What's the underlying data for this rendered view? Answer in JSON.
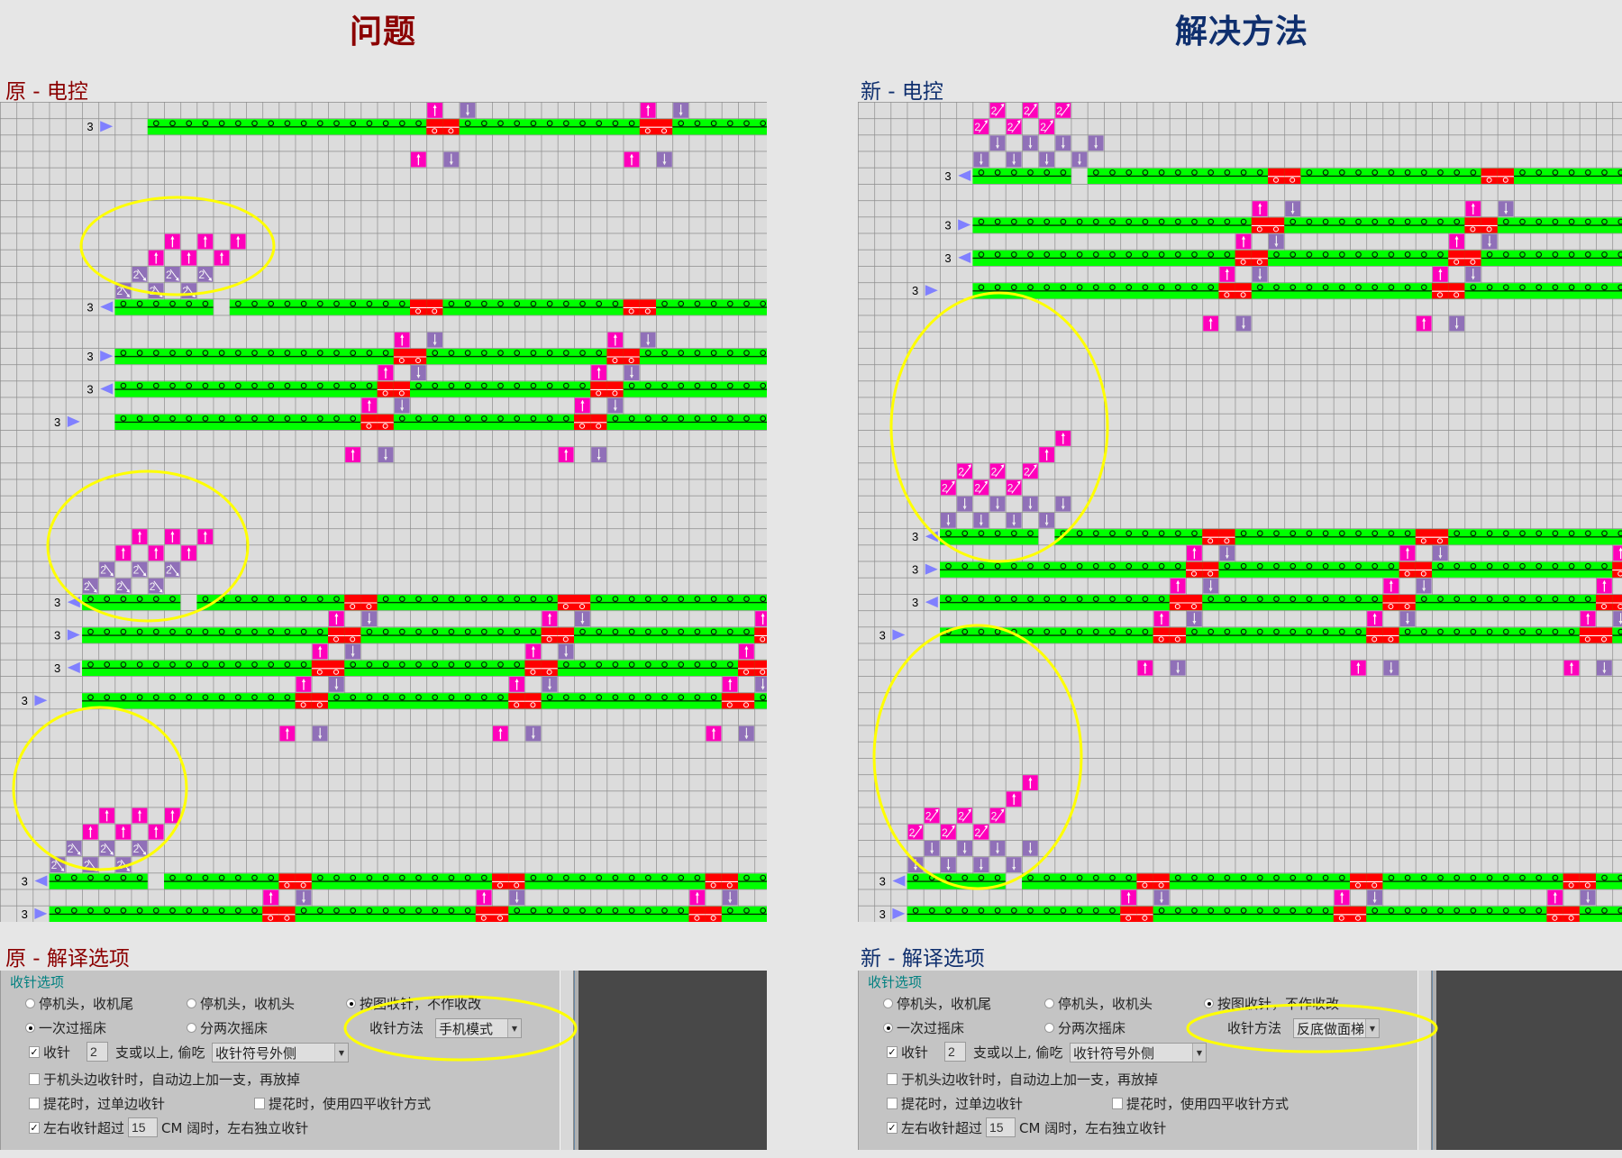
{
  "headings": {
    "problem": "问题",
    "solution": "解决方法"
  },
  "sections": {
    "orig_ctrl": "原 - 电控",
    "new_ctrl": "新 - 电控",
    "orig_opts": "原 - 解译选项",
    "new_opts": "新 - 解译选项"
  },
  "colors": {
    "grid_bg": "#dcdcdc",
    "grid_line": "#8c8c8c",
    "course": "#00ff00",
    "transfer": "#ff0000",
    "up": "#ff00bb",
    "down": "#9070b8",
    "direction_arrow": "#8080ff",
    "highlight": "#ffff00",
    "problem_title": "#8b0000",
    "solution_title": "#0f2f6e"
  },
  "grids": [
    {
      "name": "original",
      "courses": [
        {
          "row": 1,
          "label": "3",
          "dir": "right",
          "label_col": 5,
          "arrow_col": 6,
          "start": 9,
          "gap": null,
          "reds": [
            26,
            27,
            39,
            40
          ]
        },
        {
          "row": 12,
          "label": "3",
          "dir": "left",
          "label_col": 5,
          "arrow_col": 6,
          "start": 7,
          "gap": 13,
          "reds": [
            25,
            26,
            38,
            39
          ]
        },
        {
          "row": 15,
          "label": "3",
          "dir": "right",
          "label_col": 5,
          "arrow_col": 6,
          "start": 7,
          "gap": null,
          "reds": [
            24,
            25,
            37,
            38
          ]
        },
        {
          "row": 17,
          "label": "3",
          "dir": "left",
          "label_col": 5,
          "arrow_col": 6,
          "start": 7,
          "gap": null,
          "reds": [
            23,
            24,
            36,
            37
          ]
        },
        {
          "row": 19,
          "label": "3",
          "dir": "right",
          "label_col": 3,
          "arrow_col": 4,
          "start": 7,
          "gap": null,
          "reds": [
            22,
            23,
            35,
            36
          ]
        },
        {
          "row": 30,
          "label": "3",
          "dir": "left",
          "label_col": 3,
          "arrow_col": 4,
          "start": 5,
          "gap": 11,
          "reds": [
            21,
            22,
            34,
            35
          ]
        },
        {
          "row": 32,
          "label": "3",
          "dir": "right",
          "label_col": 3,
          "arrow_col": 4,
          "start": 5,
          "gap": null,
          "reds": [
            20,
            21,
            33,
            34,
            46
          ]
        },
        {
          "row": 34,
          "label": "3",
          "dir": "left",
          "label_col": 3,
          "arrow_col": 4,
          "start": 5,
          "gap": null,
          "reds": [
            19,
            20,
            32,
            33,
            45,
            46
          ]
        },
        {
          "row": 36,
          "label": "3",
          "dir": "right",
          "label_col": 1,
          "arrow_col": 2,
          "start": 5,
          "gap": null,
          "reds": [
            18,
            19,
            31,
            32,
            44,
            45
          ]
        },
        {
          "row": 47,
          "label": "3",
          "dir": "left",
          "label_col": 1,
          "arrow_col": 2,
          "start": 3,
          "gap": 9,
          "reds": [
            17,
            18,
            30,
            31,
            43,
            44
          ]
        },
        {
          "row": 49,
          "label": "3",
          "dir": "right",
          "label_col": 1,
          "arrow_col": 2,
          "start": 3,
          "gap": null,
          "reds": [
            16,
            17,
            29,
            30,
            42,
            43
          ]
        }
      ],
      "marks": [
        {
          "row": 0,
          "type": "up",
          "cols": [
            26,
            39
          ]
        },
        {
          "row": 0,
          "type": "down",
          "cols": [
            28,
            41
          ]
        },
        {
          "row": 3,
          "type": "up",
          "cols": [
            25,
            38
          ]
        },
        {
          "row": 3,
          "type": "down",
          "cols": [
            27,
            40
          ]
        },
        {
          "row": 8,
          "type": "up",
          "cols": [
            10,
            12,
            14
          ]
        },
        {
          "row": 9,
          "type": "up",
          "cols": [
            9,
            11,
            13
          ]
        },
        {
          "row": 10,
          "type": "dec2",
          "cols": [
            8,
            10,
            12
          ]
        },
        {
          "row": 11,
          "type": "dec2",
          "cols": [
            7,
            9,
            11
          ]
        },
        {
          "row": 14,
          "type": "up",
          "cols": [
            24,
            37
          ]
        },
        {
          "row": 14,
          "type": "down",
          "cols": [
            26,
            39
          ]
        },
        {
          "row": 16,
          "type": "up",
          "cols": [
            23,
            36
          ]
        },
        {
          "row": 16,
          "type": "down",
          "cols": [
            25,
            38
          ]
        },
        {
          "row": 18,
          "type": "up",
          "cols": [
            22,
            35
          ]
        },
        {
          "row": 18,
          "type": "down",
          "cols": [
            24,
            37
          ]
        },
        {
          "row": 21,
          "type": "up",
          "cols": [
            21,
            34
          ]
        },
        {
          "row": 21,
          "type": "down",
          "cols": [
            23,
            36
          ]
        },
        {
          "row": 26,
          "type": "up",
          "cols": [
            8,
            10,
            12
          ]
        },
        {
          "row": 27,
          "type": "up",
          "cols": [
            7,
            9,
            11
          ]
        },
        {
          "row": 28,
          "type": "dec2",
          "cols": [
            6,
            8,
            10
          ]
        },
        {
          "row": 29,
          "type": "dec2",
          "cols": [
            5,
            7,
            9
          ]
        },
        {
          "row": 31,
          "type": "up",
          "cols": [
            20,
            33,
            46
          ]
        },
        {
          "row": 31,
          "type": "down",
          "cols": [
            22,
            35
          ]
        },
        {
          "row": 33,
          "type": "up",
          "cols": [
            19,
            32,
            45
          ]
        },
        {
          "row": 33,
          "type": "down",
          "cols": [
            21,
            34
          ]
        },
        {
          "row": 35,
          "type": "up",
          "cols": [
            18,
            31,
            44
          ]
        },
        {
          "row": 35,
          "type": "down",
          "cols": [
            20,
            33,
            46
          ]
        },
        {
          "row": 38,
          "type": "up",
          "cols": [
            17,
            30,
            43
          ]
        },
        {
          "row": 38,
          "type": "down",
          "cols": [
            19,
            32,
            45
          ]
        },
        {
          "row": 43,
          "type": "up",
          "cols": [
            6,
            8,
            10
          ]
        },
        {
          "row": 44,
          "type": "up",
          "cols": [
            5,
            7,
            9
          ]
        },
        {
          "row": 45,
          "type": "dec2",
          "cols": [
            4,
            6,
            8
          ]
        },
        {
          "row": 46,
          "type": "dec2",
          "cols": [
            3,
            5,
            7
          ]
        },
        {
          "row": 48,
          "type": "up",
          "cols": [
            16,
            29,
            42
          ]
        },
        {
          "row": 48,
          "type": "down",
          "cols": [
            18,
            31,
            44
          ]
        }
      ]
    },
    {
      "name": "new",
      "courses": [
        {
          "row": 4,
          "label": "3",
          "dir": "left",
          "label_col": 5,
          "arrow_col": 6,
          "start": 7,
          "gap": 13,
          "reds": [
            25,
            26,
            38,
            39
          ]
        },
        {
          "row": 7,
          "label": "3",
          "dir": "right",
          "label_col": 5,
          "arrow_col": 6,
          "start": 7,
          "gap": null,
          "reds": [
            24,
            25,
            37,
            38
          ]
        },
        {
          "row": 9,
          "label": "3",
          "dir": "left",
          "label_col": 5,
          "arrow_col": 6,
          "start": 7,
          "gap": null,
          "reds": [
            23,
            24,
            36,
            37
          ]
        },
        {
          "row": 11,
          "label": "3",
          "dir": "right",
          "label_col": 3,
          "arrow_col": 4,
          "start": 7,
          "gap": null,
          "reds": [
            22,
            23,
            35,
            36
          ]
        },
        {
          "row": 26,
          "label": "3",
          "dir": "left",
          "label_col": 3,
          "arrow_col": 4,
          "start": 5,
          "gap": 11,
          "reds": [
            21,
            22,
            34,
            35
          ]
        },
        {
          "row": 28,
          "label": "3",
          "dir": "right",
          "label_col": 3,
          "arrow_col": 4,
          "start": 5,
          "gap": null,
          "reds": [
            20,
            21,
            33,
            34,
            46
          ]
        },
        {
          "row": 30,
          "label": "3",
          "dir": "left",
          "label_col": 3,
          "arrow_col": 4,
          "start": 5,
          "gap": null,
          "reds": [
            19,
            20,
            32,
            33,
            45,
            46
          ]
        },
        {
          "row": 32,
          "label": "3",
          "dir": "right",
          "label_col": 1,
          "arrow_col": 2,
          "start": 5,
          "gap": null,
          "reds": [
            18,
            19,
            31,
            32,
            44,
            45
          ]
        },
        {
          "row": 47,
          "label": "3",
          "dir": "left",
          "label_col": 1,
          "arrow_col": 2,
          "start": 3,
          "gap": 9,
          "reds": [
            17,
            18,
            30,
            31,
            43,
            44
          ]
        },
        {
          "row": 49,
          "label": "3",
          "dir": "right",
          "label_col": 1,
          "arrow_col": 2,
          "start": 3,
          "gap": null,
          "reds": [
            16,
            17,
            29,
            30,
            42,
            43
          ]
        }
      ],
      "marks": [
        {
          "row": 0,
          "type": "inc2",
          "cols": [
            8,
            10,
            12
          ]
        },
        {
          "row": 1,
          "type": "inc2",
          "cols": [
            7,
            9,
            11
          ]
        },
        {
          "row": 2,
          "type": "down",
          "cols": [
            8,
            10,
            12,
            14
          ]
        },
        {
          "row": 3,
          "type": "down",
          "cols": [
            7,
            9,
            11,
            13
          ]
        },
        {
          "row": 6,
          "type": "up",
          "cols": [
            24,
            37
          ]
        },
        {
          "row": 6,
          "type": "down",
          "cols": [
            26,
            39
          ]
        },
        {
          "row": 8,
          "type": "up",
          "cols": [
            23,
            36
          ]
        },
        {
          "row": 8,
          "type": "down",
          "cols": [
            25,
            38
          ]
        },
        {
          "row": 10,
          "type": "up",
          "cols": [
            22,
            35
          ]
        },
        {
          "row": 10,
          "type": "down",
          "cols": [
            24,
            37
          ]
        },
        {
          "row": 13,
          "type": "up",
          "cols": [
            21,
            34
          ]
        },
        {
          "row": 13,
          "type": "down",
          "cols": [
            23,
            36
          ]
        },
        {
          "row": 20,
          "type": "up",
          "cols": [
            12
          ]
        },
        {
          "row": 21,
          "type": "up",
          "cols": [
            11
          ]
        },
        {
          "row": 22,
          "type": "inc2",
          "cols": [
            6,
            8,
            10
          ]
        },
        {
          "row": 23,
          "type": "inc2",
          "cols": [
            5,
            7,
            9
          ]
        },
        {
          "row": 24,
          "type": "down",
          "cols": [
            6,
            8,
            10,
            12
          ]
        },
        {
          "row": 25,
          "type": "down",
          "cols": [
            5,
            7,
            9,
            11
          ]
        },
        {
          "row": 27,
          "type": "up",
          "cols": [
            20,
            33,
            46
          ]
        },
        {
          "row": 27,
          "type": "down",
          "cols": [
            22,
            35
          ]
        },
        {
          "row": 29,
          "type": "up",
          "cols": [
            19,
            32,
            45
          ]
        },
        {
          "row": 29,
          "type": "down",
          "cols": [
            21,
            34
          ]
        },
        {
          "row": 31,
          "type": "up",
          "cols": [
            18,
            31,
            44
          ]
        },
        {
          "row": 31,
          "type": "down",
          "cols": [
            20,
            33,
            46
          ]
        },
        {
          "row": 34,
          "type": "up",
          "cols": [
            17,
            30,
            43
          ]
        },
        {
          "row": 34,
          "type": "down",
          "cols": [
            19,
            32,
            45
          ]
        },
        {
          "row": 41,
          "type": "up",
          "cols": [
            10
          ]
        },
        {
          "row": 42,
          "type": "up",
          "cols": [
            9
          ]
        },
        {
          "row": 43,
          "type": "inc2",
          "cols": [
            4,
            6,
            8
          ]
        },
        {
          "row": 44,
          "type": "inc2",
          "cols": [
            3,
            5,
            7
          ]
        },
        {
          "row": 45,
          "type": "down",
          "cols": [
            4,
            6,
            8,
            10
          ]
        },
        {
          "row": 46,
          "type": "down",
          "cols": [
            3,
            5,
            7,
            9
          ]
        },
        {
          "row": 48,
          "type": "up",
          "cols": [
            16,
            29,
            42
          ]
        },
        {
          "row": 48,
          "type": "down",
          "cols": [
            18,
            31,
            44
          ]
        }
      ]
    }
  ],
  "panels": [
    {
      "group_title": "收针选项",
      "stop_options": [
        {
          "label": "停机头，收机尾",
          "selected": false
        },
        {
          "label": "停机头，收机头",
          "selected": false
        },
        {
          "label": "按图收针，不作收改",
          "selected": true
        }
      ],
      "rack_options": [
        {
          "label": "一次过摇床",
          "selected": true
        },
        {
          "label": "分两次摇床",
          "selected": false
        }
      ],
      "method_label": "收针方法",
      "method_value": "手机模式",
      "decrease": {
        "checked": true,
        "label": "收针",
        "count": "2",
        "suffix": "支或以上, 偷吃",
        "position": "收针符号外侧"
      },
      "carriage_edge": {
        "checked": false,
        "label": "于机头边收针时，自动边上加一支，再放掉"
      },
      "jacquard_single": {
        "checked": false,
        "label": "提花时，过单边收针"
      },
      "jacquard_four": {
        "checked": false,
        "label": "提花时，使用四平收针方式"
      },
      "independent": {
        "checked": true,
        "label": "左右收针超过",
        "width": "15",
        "suffix": "CM 阔时，左右独立收针"
      }
    },
    {
      "group_title": "收针选项",
      "stop_options": [
        {
          "label": "停机头，收机尾",
          "selected": false
        },
        {
          "label": "停机头，收机头",
          "selected": false
        },
        {
          "label": "按图收针，不作收改",
          "selected": true
        }
      ],
      "rack_options": [
        {
          "label": "一次过摇床",
          "selected": true
        },
        {
          "label": "分两次摇床",
          "selected": false
        }
      ],
      "method_label": "收针方法",
      "method_value": "反底做面梯",
      "decrease": {
        "checked": true,
        "label": "收针",
        "count": "2",
        "suffix": "支或以上, 偷吃",
        "position": "收针符号外侧"
      },
      "carriage_edge": {
        "checked": false,
        "label": "于机头边收针时，自动边上加一支，再放掉"
      },
      "jacquard_single": {
        "checked": false,
        "label": "提花时，过单边收针"
      },
      "jacquard_four": {
        "checked": false,
        "label": "提花时，使用四平收针方式"
      },
      "independent": {
        "checked": true,
        "label": "左右收针超过",
        "width": "15",
        "suffix": "CM 阔时，左右独立收针"
      }
    }
  ]
}
